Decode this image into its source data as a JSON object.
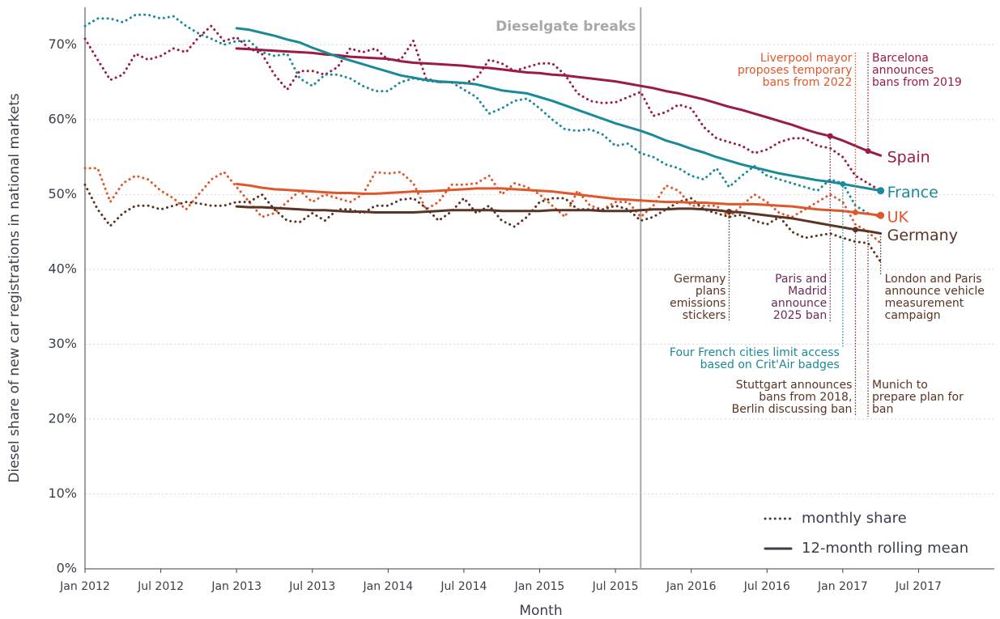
{
  "chart_data": {
    "type": "line",
    "x_label": "Month",
    "y_label": "Diesel share of new car registrations in national markets",
    "x": [
      "2012-01",
      "2012-02",
      "2012-03",
      "2012-04",
      "2012-05",
      "2012-06",
      "2012-07",
      "2012-08",
      "2012-09",
      "2012-10",
      "2012-11",
      "2012-12",
      "2013-01",
      "2013-02",
      "2013-03",
      "2013-04",
      "2013-05",
      "2013-06",
      "2013-07",
      "2013-08",
      "2013-09",
      "2013-10",
      "2013-11",
      "2013-12",
      "2014-01",
      "2014-02",
      "2014-03",
      "2014-04",
      "2014-05",
      "2014-06",
      "2014-07",
      "2014-08",
      "2014-09",
      "2014-10",
      "2014-11",
      "2014-12",
      "2015-01",
      "2015-02",
      "2015-03",
      "2015-04",
      "2015-05",
      "2015-06",
      "2015-07",
      "2015-08",
      "2015-09",
      "2015-10",
      "2015-11",
      "2015-12",
      "2016-01",
      "2016-02",
      "2016-03",
      "2016-04",
      "2016-05",
      "2016-06",
      "2016-07",
      "2016-08",
      "2016-09",
      "2016-10",
      "2016-11",
      "2016-12",
      "2017-01",
      "2017-02",
      "2017-03",
      "2017-04"
    ],
    "xlim": [
      "2012-01",
      "2018-01"
    ],
    "xticks": [
      {
        "value": "2012-01",
        "label": "Jan 2012"
      },
      {
        "value": "2012-07",
        "label": "Jul 2012"
      },
      {
        "value": "2013-01",
        "label": "Jan 2013"
      },
      {
        "value": "2013-07",
        "label": "Jul 2013"
      },
      {
        "value": "2014-01",
        "label": "Jan 2014"
      },
      {
        "value": "2014-07",
        "label": "Jul 2014"
      },
      {
        "value": "2015-01",
        "label": "Jan 2015"
      },
      {
        "value": "2015-07",
        "label": "Jul 2015"
      },
      {
        "value": "2016-01",
        "label": "Jan 2016"
      },
      {
        "value": "2016-07",
        "label": "Jul 2016"
      },
      {
        "value": "2017-01",
        "label": "Jan 2017"
      },
      {
        "value": "2017-07",
        "label": "Jul 2017"
      }
    ],
    "ylim": [
      0,
      75
    ],
    "yticks": [
      {
        "value": 0,
        "label": "0%"
      },
      {
        "value": 10,
        "label": "10%"
      },
      {
        "value": 20,
        "label": "20%"
      },
      {
        "value": 30,
        "label": "30%"
      },
      {
        "value": 40,
        "label": "40%"
      },
      {
        "value": 50,
        "label": "50%"
      },
      {
        "value": 60,
        "label": "60%"
      },
      {
        "value": 70,
        "label": "70%"
      }
    ],
    "grid": true,
    "legend_position": "lower right",
    "legend": [
      {
        "label": "monthly share",
        "style": "dotted"
      },
      {
        "label": "12-month rolling mean",
        "style": "solid"
      }
    ],
    "series": [
      {
        "name": "Spain",
        "color": "#9b1b45",
        "monthly": [
          70.8,
          68,
          65.3,
          66,
          68.8,
          68,
          68.5,
          69.5,
          69,
          71,
          72.5,
          70.5,
          71,
          69.5,
          68.8,
          66,
          64,
          66.5,
          66.5,
          66,
          67,
          69.5,
          69,
          69.5,
          68,
          68,
          70.5,
          65.5,
          65,
          65,
          64.8,
          65.5,
          68,
          67.5,
          66.5,
          67,
          67.5,
          67.5,
          66,
          63.5,
          62.5,
          62.2,
          62.3,
          63,
          63.7,
          60.5,
          61,
          62,
          61.5,
          59,
          57.5,
          57,
          56.5,
          55.5,
          56,
          57,
          57.5,
          57.5,
          56.5,
          56.2,
          55,
          52.5,
          51.5,
          50.5
        ],
        "mean": [
          null,
          null,
          null,
          null,
          null,
          null,
          null,
          null,
          null,
          null,
          null,
          null,
          69.5,
          69.4,
          69.3,
          69.2,
          69.1,
          69.0,
          68.9,
          68.7,
          68.6,
          68.4,
          68.3,
          68.2,
          68.1,
          67.8,
          67.6,
          67.5,
          67.4,
          67.3,
          67.2,
          67.0,
          66.9,
          66.7,
          66.5,
          66.3,
          66.2,
          66.0,
          65.9,
          65.7,
          65.5,
          65.3,
          65.1,
          64.8,
          64.5,
          64.2,
          63.8,
          63.5,
          63.1,
          62.7,
          62.2,
          61.7,
          61.3,
          60.8,
          60.3,
          59.8,
          59.3,
          58.7,
          58.2,
          57.8,
          57.2,
          56.5,
          55.8,
          55.2
        ]
      },
      {
        "name": "France",
        "color": "#1a8a98",
        "monthly": [
          72.5,
          73.5,
          73.5,
          73,
          74,
          74,
          73.5,
          73.8,
          72.5,
          71.5,
          70.8,
          70,
          70.5,
          70.5,
          69,
          68.5,
          68.8,
          65.5,
          64.5,
          66,
          66,
          65.5,
          64.5,
          63.8,
          63.8,
          65,
          65.5,
          65.2,
          65,
          65,
          64,
          63,
          60.8,
          61.5,
          62.5,
          62.8,
          61.5,
          60,
          58.7,
          58.5,
          58.7,
          58,
          56.5,
          56.8,
          55.5,
          55,
          54,
          53.5,
          52.5,
          52,
          53.5,
          51,
          52.5,
          53.8,
          52.5,
          52,
          51.5,
          51,
          50.5,
          52,
          51.5,
          48.5,
          47.5,
          47
        ],
        "mean": [
          null,
          null,
          null,
          null,
          null,
          null,
          null,
          null,
          null,
          null,
          null,
          null,
          72.2,
          72,
          71.6,
          71.2,
          70.7,
          70.3,
          69.6,
          69,
          68.4,
          67.9,
          67.4,
          66.9,
          66.4,
          65.9,
          65.6,
          65.3,
          65.1,
          65.0,
          64.9,
          64.7,
          64.3,
          63.9,
          63.7,
          63.5,
          63.0,
          62.5,
          61.9,
          61.3,
          60.7,
          60.1,
          59.5,
          59.0,
          58.5,
          57.9,
          57.2,
          56.7,
          56.1,
          55.6,
          55.0,
          54.5,
          54.0,
          53.6,
          53.2,
          52.8,
          52.5,
          52.2,
          51.9,
          51.7,
          51.4,
          51.1,
          50.8,
          50.5
        ]
      },
      {
        "name": "UK",
        "color": "#e0572b",
        "monthly": [
          53.5,
          53.5,
          49,
          51.5,
          52.5,
          52,
          50.5,
          49.5,
          48,
          50,
          52,
          53,
          51,
          49,
          47,
          47.5,
          49,
          50.5,
          49,
          50,
          49.5,
          49,
          50,
          53,
          52.8,
          53,
          51.5,
          48,
          49,
          51.3,
          51.3,
          51.5,
          52.5,
          50,
          51.5,
          51,
          50,
          48.5,
          47,
          50.5,
          48.5,
          48,
          49,
          49,
          47,
          48.5,
          51.2,
          50.5,
          48.5,
          48.5,
          48.5,
          47,
          48.5,
          50,
          49,
          47.5,
          47,
          48,
          49,
          50,
          49,
          46,
          45,
          43.5
        ],
        "mean": [
          null,
          null,
          null,
          null,
          null,
          null,
          null,
          null,
          null,
          null,
          null,
          null,
          51.4,
          51.2,
          50.9,
          50.7,
          50.6,
          50.5,
          50.4,
          50.3,
          50.2,
          50.2,
          50.1,
          50.1,
          50.2,
          50.3,
          50.4,
          50.4,
          50.5,
          50.6,
          50.7,
          50.8,
          50.8,
          50.8,
          50.7,
          50.6,
          50.5,
          50.4,
          50.2,
          50.0,
          49.8,
          49.6,
          49.4,
          49.3,
          49.2,
          49.1,
          49.0,
          49.0,
          48.9,
          48.9,
          48.8,
          48.7,
          48.7,
          48.7,
          48.6,
          48.5,
          48.4,
          48.2,
          48.0,
          47.9,
          47.8,
          47.6,
          47.4,
          47.2
        ]
      },
      {
        "name": "Germany",
        "color": "#5b3424",
        "monthly": [
          51.3,
          48,
          45.8,
          47.5,
          48.5,
          48.5,
          48,
          48.5,
          49,
          48.8,
          48.5,
          48.5,
          49,
          49,
          50,
          48,
          46.5,
          46.3,
          47.5,
          46.5,
          48,
          48,
          47.5,
          48.5,
          48.5,
          49.3,
          49.5,
          48.2,
          46.5,
          47.7,
          49.5,
          47.5,
          48.5,
          46.5,
          45.7,
          47,
          49,
          49.5,
          49.5,
          48,
          48,
          48,
          48.5,
          48,
          46.5,
          47,
          48,
          49,
          49.5,
          48,
          47.5,
          47,
          47.3,
          46.5,
          46,
          47,
          45,
          44.2,
          44.5,
          44.8,
          44.2,
          43.7,
          43.5,
          41
        ],
        "mean": [
          null,
          null,
          null,
          null,
          null,
          null,
          null,
          null,
          null,
          null,
          null,
          null,
          48.4,
          48.3,
          48.3,
          48.2,
          48.1,
          48.0,
          47.9,
          47.9,
          47.8,
          47.7,
          47.7,
          47.6,
          47.6,
          47.6,
          47.6,
          47.7,
          47.8,
          47.9,
          47.9,
          47.9,
          47.9,
          47.8,
          47.8,
          47.8,
          47.8,
          47.9,
          47.9,
          47.9,
          47.9,
          47.8,
          47.8,
          47.8,
          47.9,
          48.0,
          48.0,
          48.1,
          48.1,
          48.0,
          47.9,
          47.7,
          47.6,
          47.4,
          47.2,
          47.0,
          46.8,
          46.5,
          46.2,
          45.9,
          45.6,
          45.3,
          45.1,
          44.8
        ]
      }
    ],
    "event": {
      "x": "2015-09",
      "label": "Dieselgate breaks",
      "color": "#a6a8ab"
    },
    "annotations": [
      {
        "x": "2016-04",
        "color": "#5b3424",
        "lines": [
          "Germany",
          "plans",
          "emissions",
          "stickers"
        ]
      },
      {
        "x": "2016-12",
        "color": "#6e2a5a",
        "lines": [
          "Paris and",
          "Madrid",
          "announce",
          "2025 ban"
        ]
      },
      {
        "x": "2017-01",
        "color": "#1a8a98",
        "lines": [
          "Four French cities limit access",
          "based on Crit'Air badges"
        ]
      },
      {
        "x": "2017-02",
        "color": "#5b3424",
        "lines": [
          "Stuttgart announces",
          "bans from 2018,",
          "Berlin discussing ban"
        ]
      },
      {
        "x": "2017-03",
        "color": "#5b3424",
        "lines": [
          "Munich to",
          "prepare plan for",
          "ban"
        ]
      },
      {
        "x": "2017-02",
        "color": "#e0572b",
        "lines": [
          "Liverpool mayor",
          "proposes temporary",
          "bans from 2022"
        ]
      },
      {
        "x": "2017-03",
        "color": "#9b1b45",
        "lines": [
          "Barcelona",
          "announces",
          "bans from 2019"
        ]
      },
      {
        "x": "2017-04",
        "color": "#5b3424",
        "lines": [
          "London and Paris",
          "announce vehicle",
          "measurement",
          "campaign"
        ]
      }
    ]
  }
}
